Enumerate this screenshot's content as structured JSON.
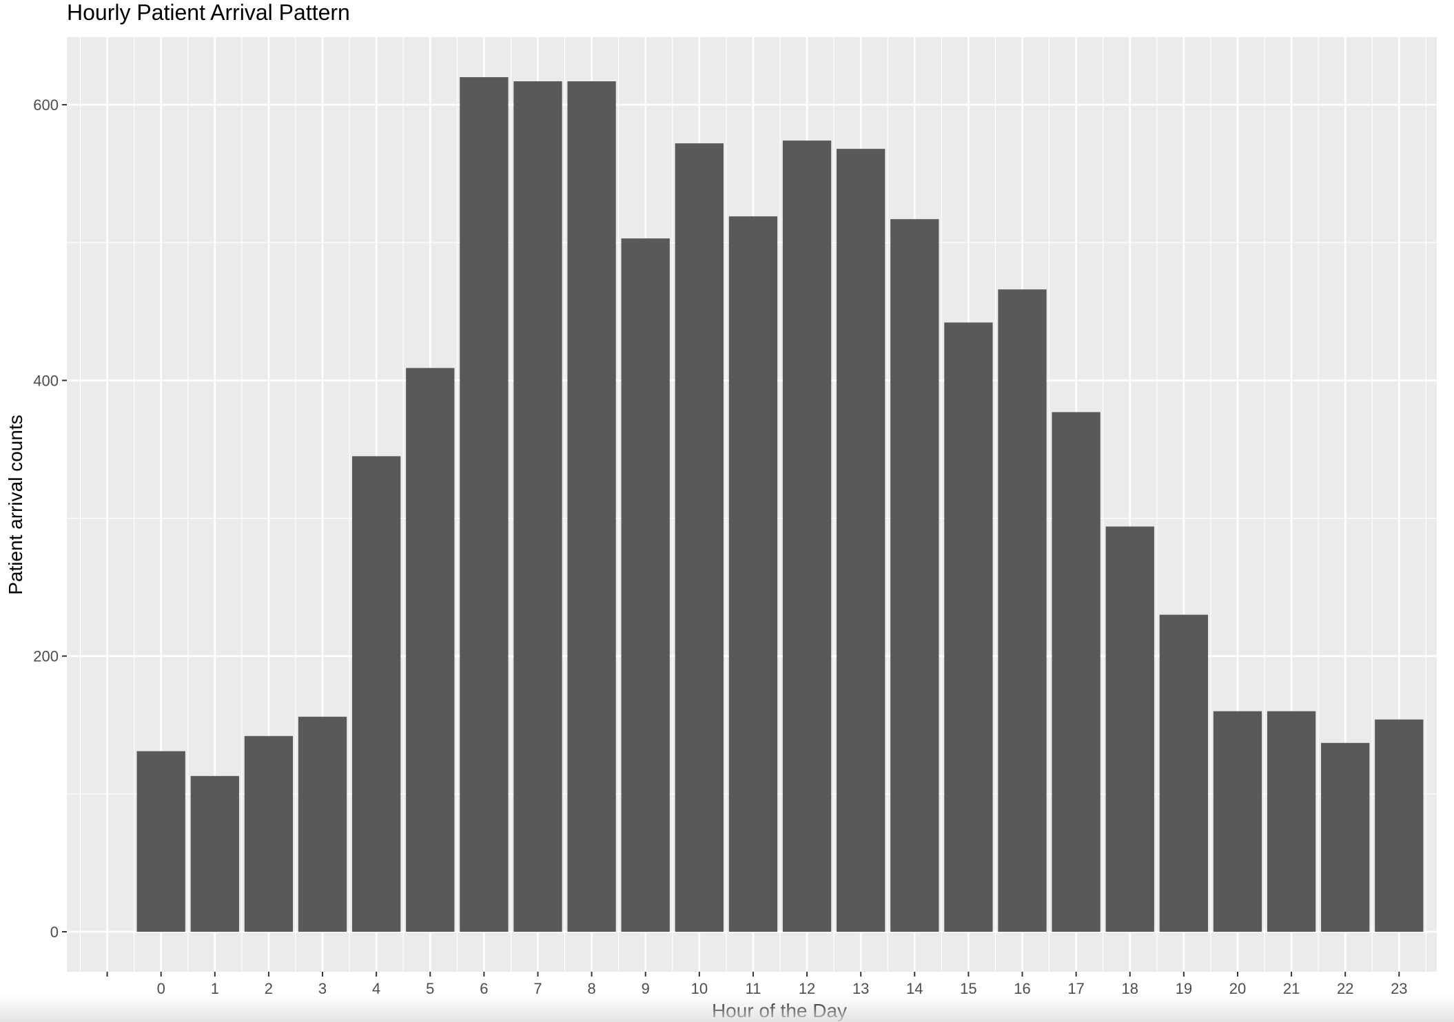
{
  "chart_data": {
    "type": "bar",
    "title": "Hourly Patient Arrival Pattern",
    "xlabel": "Hour of the Day",
    "ylabel": "Patient arrival counts",
    "categories": [
      "0",
      "1",
      "2",
      "3",
      "4",
      "5",
      "6",
      "7",
      "8",
      "9",
      "10",
      "11",
      "12",
      "13",
      "14",
      "15",
      "16",
      "17",
      "18",
      "19",
      "20",
      "21",
      "22",
      "23"
    ],
    "values": [
      131,
      113,
      142,
      156,
      345,
      409,
      620,
      617,
      617,
      503,
      572,
      519,
      574,
      568,
      517,
      442,
      466,
      377,
      294,
      230,
      160,
      160,
      137,
      154
    ],
    "yticks": [
      0,
      200,
      400,
      600
    ],
    "ylim": [
      -29,
      649
    ],
    "grid": true,
    "bar_color": "#595959",
    "panel_color": "#ebebeb",
    "grid_color": "#ffffff"
  }
}
